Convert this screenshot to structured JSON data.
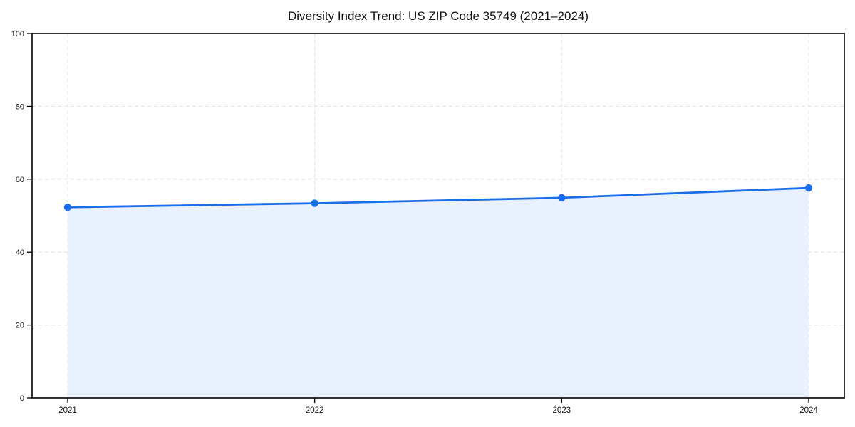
{
  "chart_data": {
    "type": "area",
    "title": "Diversity Index Trend: US ZIP Code 35749 (2021–2024)",
    "x": [
      "2021",
      "2022",
      "2023",
      "2024"
    ],
    "series": [
      {
        "name": "Diversity Index",
        "values": [
          52.3,
          53.4,
          54.9,
          57.6
        ]
      }
    ],
    "xlabel": "",
    "ylabel": "",
    "ylim": [
      0,
      100
    ],
    "yticks": [
      0,
      20,
      40,
      60,
      80,
      100
    ],
    "grid": true,
    "grid_style": "dashed",
    "legend": "none",
    "colors": {
      "line": "#1a6fe8",
      "marker": "#1a6fe8",
      "area_fill": "#e8f1fd",
      "grid": "#dedede",
      "axis": "#000000",
      "tick_label": "#111111",
      "title": "#111111",
      "background": "#ffffff"
    }
  }
}
